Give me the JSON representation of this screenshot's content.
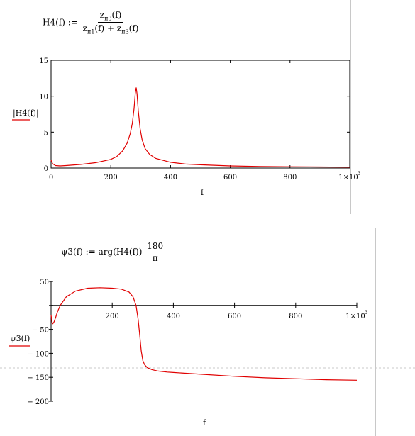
{
  "formula1": {
    "lhs": "H4(f) :=",
    "numerator": {
      "base": "z",
      "sub": "п3",
      "tail": "(f)"
    },
    "denominator": {
      "a_base": "z",
      "a_sub": "п1",
      "a_tail": "(f) + ",
      "b_base": "z",
      "b_sub": "п3",
      "b_tail": "(f)"
    }
  },
  "formula2": {
    "lhs": "ψ3(f) := arg(H4(f))",
    "numerator": "180",
    "denominator": "π"
  },
  "colors": {
    "trace": "#e00000",
    "axis": "#000000",
    "frame": "#000000",
    "guide": "#c8c8c8"
  },
  "chart_data": [
    {
      "type": "line",
      "ylabel": "|H4(f)|",
      "xlabel": "f",
      "xlim": [
        0,
        1000
      ],
      "ylim": [
        0,
        15
      ],
      "x_ticks": [
        "0",
        "200",
        "400",
        "600",
        "800",
        "1×10"
      ],
      "x_tick_exp": "3",
      "y_ticks": [
        "0",
        "5",
        "10",
        "15"
      ],
      "series": [
        {
          "x": [
            0,
            5,
            15,
            30,
            50,
            100,
            150,
            200,
            220,
            240,
            255,
            265,
            272,
            278,
            282,
            285,
            288,
            292,
            298,
            305,
            315,
            330,
            350,
            400,
            450,
            500,
            600,
            700,
            800,
            900,
            1000
          ],
          "values": [
            1.1,
            0.6,
            0.35,
            0.3,
            0.35,
            0.5,
            0.75,
            1.2,
            1.6,
            2.4,
            3.5,
            4.8,
            6.2,
            8.3,
            10.4,
            11.2,
            10.3,
            8.0,
            5.5,
            3.9,
            2.7,
            1.9,
            1.35,
            0.8,
            0.55,
            0.45,
            0.3,
            0.22,
            0.18,
            0.15,
            0.12
          ]
        }
      ]
    },
    {
      "type": "line",
      "ylabel": "ψ3(f)",
      "xlabel": "f",
      "xlim": [
        0,
        1000
      ],
      "ylim": [
        -200,
        50
      ],
      "x_ticks": [
        "200",
        "400",
        "600",
        "800",
        "1×10"
      ],
      "x_tick_exp": "3",
      "y_ticks": [
        "50",
        "0",
        "− 50",
        "− 100",
        "− 150",
        "− 200"
      ],
      "series": [
        {
          "x": [
            0,
            3,
            6,
            10,
            15,
            20,
            30,
            50,
            80,
            120,
            160,
            200,
            230,
            255,
            268,
            278,
            285,
            290,
            295,
            300,
            306,
            315,
            330,
            350,
            380,
            400,
            500,
            600,
            700,
            800,
            900,
            1000
          ],
          "values": [
            -20,
            -35,
            -38,
            -34,
            -25,
            -15,
            0,
            18,
            30,
            36,
            37,
            36,
            34,
            28,
            18,
            0,
            -30,
            -62,
            -95,
            -115,
            -124,
            -130,
            -134,
            -137,
            -139,
            -140,
            -144,
            -148,
            -151,
            -153,
            -155,
            -156
          ]
        }
      ]
    }
  ]
}
